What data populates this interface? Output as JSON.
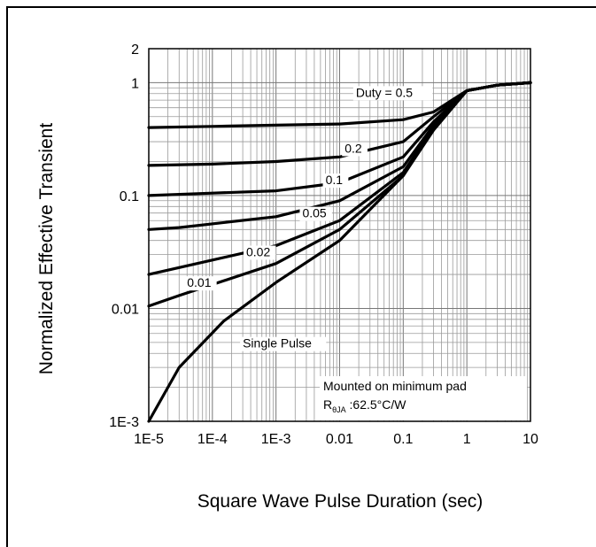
{
  "chart_data": {
    "type": "line",
    "xscale": "log",
    "yscale": "log",
    "xlim": [
      1e-05,
      10
    ],
    "ylim": [
      0.001,
      2
    ],
    "grid": true,
    "xlabel": "Square Wave Pulse Duration (sec)",
    "ylabel": "Normalized Effective Transient",
    "x_ticks": [
      "1E-5",
      "1E-4",
      "1E-3",
      "0.01",
      "0.1",
      "1",
      "10"
    ],
    "y_ticks": [
      "1E-3",
      "0.01",
      "0.1",
      "1",
      "2"
    ],
    "series": [
      {
        "label": "Duty =  0.5",
        "points": [
          [
            1e-05,
            0.4
          ],
          [
            0.0001,
            0.41
          ],
          [
            0.001,
            0.42
          ],
          [
            0.01,
            0.43
          ],
          [
            0.1,
            0.47
          ],
          [
            0.3,
            0.55
          ],
          [
            1,
            0.85
          ],
          [
            3,
            0.95
          ],
          [
            10,
            1.0
          ]
        ]
      },
      {
        "label": "0.2",
        "points": [
          [
            1e-05,
            0.185
          ],
          [
            0.0001,
            0.19
          ],
          [
            0.001,
            0.2
          ],
          [
            0.01,
            0.22
          ],
          [
            0.1,
            0.3
          ],
          [
            0.3,
            0.5
          ],
          [
            1,
            0.85
          ],
          [
            3,
            0.95
          ],
          [
            10,
            1.0
          ]
        ]
      },
      {
        "label": "0.1",
        "points": [
          [
            1e-05,
            0.1
          ],
          [
            0.0001,
            0.105
          ],
          [
            0.001,
            0.11
          ],
          [
            0.01,
            0.13
          ],
          [
            0.1,
            0.22
          ],
          [
            0.3,
            0.45
          ],
          [
            1,
            0.85
          ],
          [
            3,
            0.95
          ],
          [
            10,
            1.0
          ]
        ]
      },
      {
        "label": "0.05",
        "points": [
          [
            1e-05,
            0.05
          ],
          [
            3e-05,
            0.052
          ],
          [
            0.001,
            0.065
          ],
          [
            0.01,
            0.09
          ],
          [
            0.1,
            0.18
          ],
          [
            0.3,
            0.42
          ],
          [
            1,
            0.85
          ],
          [
            3,
            0.95
          ],
          [
            10,
            1.0
          ]
        ]
      },
      {
        "label": "0.02",
        "points": [
          [
            1e-05,
            0.02
          ],
          [
            3e-05,
            0.023
          ],
          [
            0.001,
            0.036
          ],
          [
            0.01,
            0.06
          ],
          [
            0.1,
            0.16
          ],
          [
            0.3,
            0.4
          ],
          [
            1,
            0.85
          ],
          [
            3,
            0.95
          ],
          [
            10,
            1.0
          ]
        ]
      },
      {
        "label": "0.01",
        "points": [
          [
            1e-05,
            0.0105
          ],
          [
            3e-05,
            0.013
          ],
          [
            0.001,
            0.025
          ],
          [
            0.01,
            0.05
          ],
          [
            0.1,
            0.15
          ],
          [
            0.3,
            0.39
          ],
          [
            1,
            0.85
          ],
          [
            3,
            0.95
          ],
          [
            10,
            1.0
          ]
        ]
      },
      {
        "label": "Single Pulse",
        "points": [
          [
            1e-05,
            0.001
          ],
          [
            3e-05,
            0.003
          ],
          [
            0.00015,
            0.0077
          ],
          [
            0.001,
            0.017
          ],
          [
            0.01,
            0.04
          ],
          [
            0.1,
            0.15
          ],
          [
            0.3,
            0.38
          ],
          [
            1,
            0.85
          ],
          [
            3,
            0.95
          ],
          [
            10,
            1.0
          ]
        ]
      }
    ],
    "annotation": {
      "line1": "Mounted on minimum pad",
      "line2_main": "R",
      "line2_sub": "θJA",
      "line2_rest": " :62.5°C/W"
    }
  }
}
